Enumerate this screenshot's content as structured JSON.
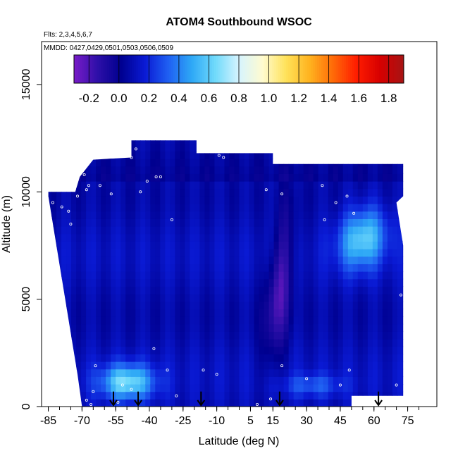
{
  "chart_data": {
    "type": "heatmap",
    "title": "ATOM4 Southbound WSOC",
    "subtitle_flights": "Flts: 2,3,4,5,6,7",
    "subtitle_dates": "MMDD: 0427,0429,0501,0503,0506,0509",
    "xlabel": "Latitude (deg N)",
    "ylabel": "Altitude (m)",
    "xlim": [
      -88,
      88
    ],
    "ylim": [
      0,
      17000
    ],
    "x_ticks": [
      -85,
      -70,
      -55,
      -40,
      -25,
      -10,
      5,
      15,
      30,
      45,
      60,
      75
    ],
    "x_tick_labels": [
      "-85",
      "-70",
      "-55",
      "-40",
      "-25",
      "-10",
      "5",
      "15",
      "30",
      "45",
      "60",
      "75"
    ],
    "y_ticks": [
      0,
      5000,
      10000,
      15000
    ],
    "y_tick_labels": [
      "0",
      "5000",
      "10000",
      "15000"
    ],
    "colorbar": {
      "range": [
        -0.3,
        1.9
      ],
      "ticks": [
        -0.2,
        0.0,
        0.2,
        0.4,
        0.6,
        0.8,
        1.0,
        1.2,
        1.4,
        1.6,
        1.8
      ],
      "tick_labels": [
        "-0.2",
        "0.0",
        "0.2",
        "0.4",
        "0.6",
        "0.8",
        "1.0",
        "1.2",
        "1.4",
        "1.6",
        "1.8"
      ],
      "colors": [
        "#7a1cc8",
        "#2d0fa8",
        "#00008f",
        "#0a1ad4",
        "#1f5ff2",
        "#2ea8f6",
        "#70dafb",
        "#d6f4ff",
        "#fffbd0",
        "#ffe25a",
        "#ffb31f",
        "#ff6a08",
        "#ff1c00",
        "#d60000",
        "#a61414"
      ]
    },
    "domain_outline": [
      [
        -85,
        10000
      ],
      [
        -73,
        10000
      ],
      [
        -71,
        10700
      ],
      [
        -65,
        11500
      ],
      [
        -48,
        11600
      ],
      [
        -48,
        12400
      ],
      [
        -19,
        12400
      ],
      [
        -19,
        11800
      ],
      [
        15,
        11800
      ],
      [
        15,
        11300
      ],
      [
        73,
        11300
      ],
      [
        73,
        9800
      ],
      [
        70,
        9500
      ],
      [
        73,
        7500
      ],
      [
        73,
        500
      ],
      [
        50,
        500
      ],
      [
        50,
        0
      ],
      [
        -70,
        0
      ],
      [
        -72,
        1500
      ],
      [
        -85,
        9800
      ]
    ],
    "base_value": 0.1,
    "features": [
      {
        "name": "surface-plume",
        "x": [
          -65,
          -35
        ],
        "y": [
          200,
          2100
        ],
        "peak": 0.65
      },
      {
        "name": "upper-plume",
        "x": [
          42,
          68
        ],
        "y": [
          6200,
          9500
        ],
        "peak": 0.6
      },
      {
        "name": "tropical-column-low",
        "x": [
          14,
          28
        ],
        "y": [
          1500,
          9500
        ],
        "peak": -0.2
      },
      {
        "name": "mid-lat-band",
        "x": [
          15,
          50
        ],
        "y": [
          400,
          1600
        ],
        "peak": 0.3
      }
    ],
    "sample_points": [
      [
        -83,
        9500
      ],
      [
        -79,
        9300
      ],
      [
        -76,
        9100
      ],
      [
        -75,
        8500
      ],
      [
        -72,
        9800
      ],
      [
        -69,
        10800
      ],
      [
        -66,
        11600
      ],
      [
        -68,
        10100
      ],
      [
        -67,
        10300
      ],
      [
        -62,
        10300
      ],
      [
        -57,
        9900
      ],
      [
        -48,
        11600
      ],
      [
        -46,
        12000
      ],
      [
        -44,
        10000
      ],
      [
        -41,
        10500
      ],
      [
        -37,
        10700
      ],
      [
        -35,
        10700
      ],
      [
        -30,
        8700
      ],
      [
        -17,
        12200
      ],
      [
        -9,
        11700
      ],
      [
        -7,
        11600
      ],
      [
        12,
        10100
      ],
      [
        19,
        9900
      ],
      [
        37,
        10300
      ],
      [
        43,
        9500
      ],
      [
        48,
        9800
      ],
      [
        38,
        8700
      ],
      [
        51,
        9000
      ],
      [
        69,
        11400
      ],
      [
        72,
        5200
      ],
      [
        70,
        1000
      ],
      [
        49,
        1700
      ],
      [
        45,
        1000
      ],
      [
        30,
        1300
      ],
      [
        19,
        1900
      ],
      [
        8,
        100
      ],
      [
        14,
        350
      ],
      [
        -10,
        1500
      ],
      [
        -16,
        1700
      ],
      [
        -38,
        2700
      ],
      [
        -32,
        1700
      ],
      [
        -48,
        800
      ],
      [
        -52,
        1000
      ],
      [
        -65,
        700
      ],
      [
        -64,
        1900
      ],
      [
        -68,
        300
      ],
      [
        -66,
        100
      ],
      [
        -54,
        200
      ],
      [
        -28,
        500
      ]
    ],
    "arrow_latitudes": [
      -56,
      -45,
      -17,
      18,
      62
    ]
  }
}
